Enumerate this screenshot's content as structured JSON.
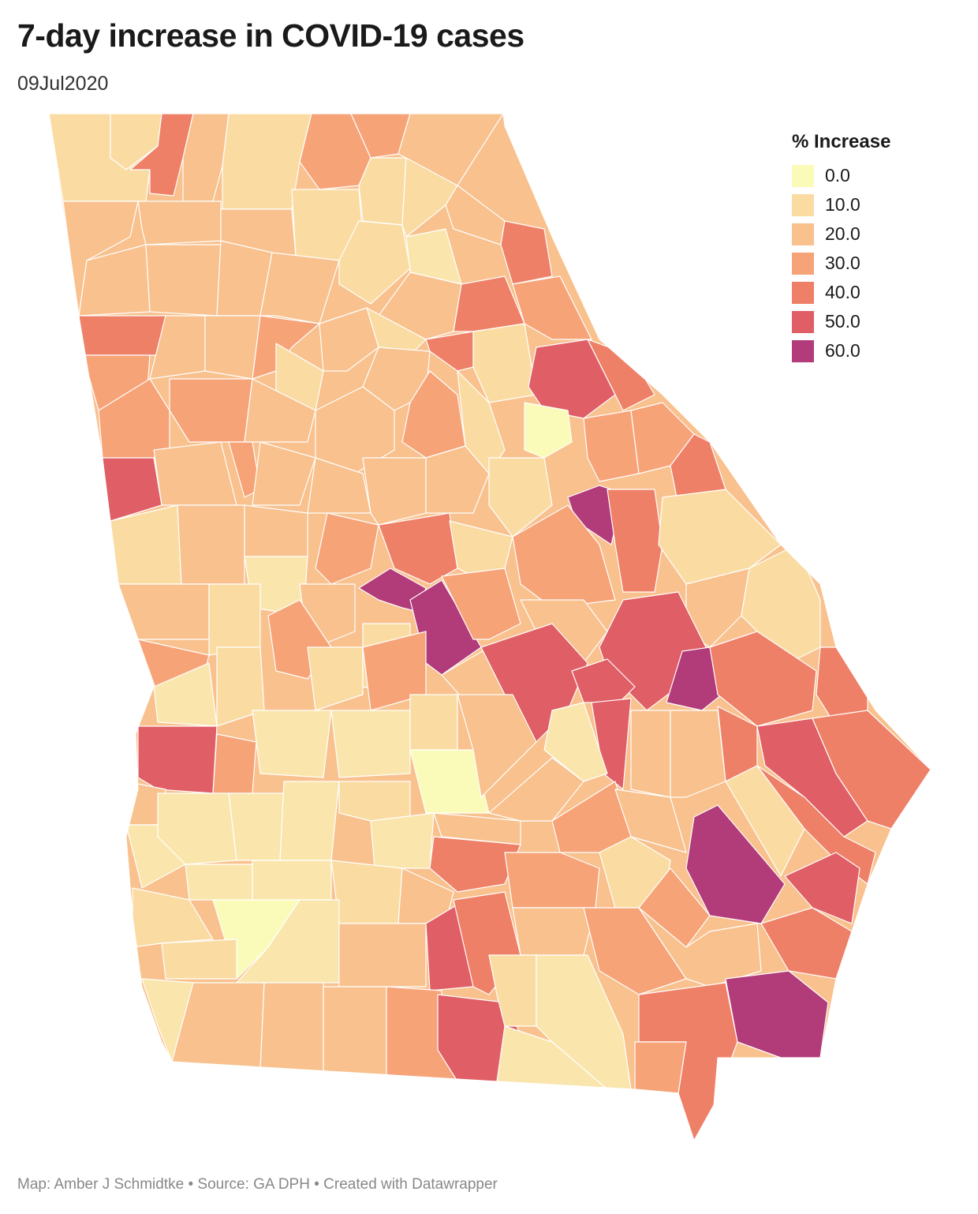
{
  "header": {
    "title": "7-day increase in COVID-19 cases",
    "subtitle": "09Jul2020"
  },
  "legend": {
    "title": "% Increase",
    "items": [
      {
        "label": "0.0",
        "color": "#fafbb9"
      },
      {
        "label": "10.0",
        "color": "#fadca3"
      },
      {
        "label": "20.0",
        "color": "#f8c18e"
      },
      {
        "label": "30.0",
        "color": "#f7a378"
      },
      {
        "label": "40.0",
        "color": "#ef8068"
      },
      {
        "label": "50.0",
        "color": "#e05e66"
      },
      {
        "label": "60.0",
        "color": "#b23b7a"
      }
    ]
  },
  "footer": {
    "credit": "Map: Amber J Schmidtke • Source: GA DPH • Created with Datawrapper"
  }
}
